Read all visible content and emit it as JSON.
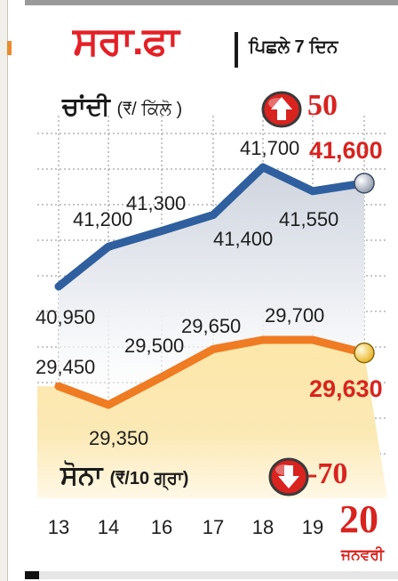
{
  "header": {
    "title": "ਸਰਾ.ਫਾ",
    "subtitle": "ਪਿਛਲੇ 7 ਦਿਨ"
  },
  "silver": {
    "label": "ਚਾਂਦੀ",
    "unit": "(₹/ ਕਿੱਲੋ )",
    "change": "50",
    "direction": "up"
  },
  "gold": {
    "label": "ਸੋਨਾ",
    "unit": "(₹/10 ਗ੍ਰਾ)",
    "change": "-70",
    "direction": "down"
  },
  "date": {
    "day": "20",
    "month": "ਜਨਵਰੀ"
  },
  "colors": {
    "silver_line": "#2f5f9e",
    "gold_line": "#ef7b22",
    "accent_red": "#d8231f"
  },
  "chart_data": {
    "type": "line",
    "x": [
      "13",
      "14",
      "16",
      "17",
      "18",
      "19",
      "20"
    ],
    "grid": true,
    "series": [
      {
        "name": "ਚਾਂਦੀ",
        "values": [
          40950,
          41200,
          41300,
          41400,
          41700,
          41550,
          41600
        ],
        "labels": [
          "40,950",
          "41,200",
          "41,300",
          "41,400",
          "41,700",
          "41,550",
          "41,600"
        ]
      },
      {
        "name": "ਸੋਨਾ",
        "values": [
          29450,
          29350,
          29500,
          29650,
          29700,
          29700,
          29630
        ],
        "labels": [
          "29,450",
          "29,350",
          "29,500",
          "29,650",
          "29,700",
          "",
          "29,630"
        ]
      }
    ],
    "x_ticks": [
      "13",
      "14",
      "16",
      "17",
      "18",
      "19"
    ]
  }
}
